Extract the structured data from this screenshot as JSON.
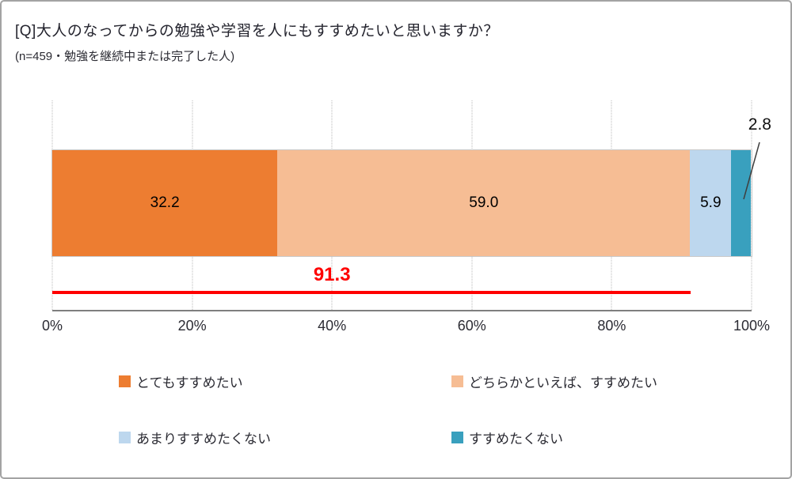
{
  "page": {
    "title": "[Q]大人のなってからの勉強や学習を人にもすすめたいと思いますか？",
    "subtitle": "(n=459・勉強を継続中または完了した人)"
  },
  "chart_data": {
    "type": "bar",
    "orientation": "horizontal",
    "stacked": true,
    "title": "[Q]大人のなってからの勉強や学習を人にもすすめたいと思いますか？",
    "subtitle": "(n=459・勉強を継続中または完了した人)",
    "categories": [
      "とてもすすめたい",
      "どちらかといえば、すすめたい",
      "あまりすすめたくない",
      "すすめたくない"
    ],
    "values": [
      32.2,
      59.0,
      5.9,
      2.8
    ],
    "xlim": [
      0,
      100
    ],
    "gridlines": "dotted-vertical",
    "legend_position": "bottom",
    "x_ticks": [
      {
        "label": "0%",
        "value": 0
      },
      {
        "label": "20%",
        "value": 20
      },
      {
        "label": "40%",
        "value": 40
      },
      {
        "label": "60%",
        "value": 60
      },
      {
        "label": "80%",
        "value": 80
      },
      {
        "label": "100%",
        "value": 100
      }
    ],
    "segments": [
      {
        "label": "とてもすすめたい",
        "value": 32.2,
        "display": "32.2",
        "color": "#ED7D31",
        "label_inside": true
      },
      {
        "label": "どちらかといえば、すすめたい",
        "value": 59.0,
        "display": "59.0",
        "color": "#F6BD94",
        "label_inside": true
      },
      {
        "label": "あまりすすめたくない",
        "value": 5.9,
        "display": "5.9",
        "color": "#BDD7EE",
        "label_inside": true
      },
      {
        "label": "すすめたくない",
        "value": 2.8,
        "display": "2.8",
        "color": "#39A0BE",
        "label_inside": false
      }
    ],
    "outside_label": {
      "text": "2.8",
      "segment": "すすめたくない"
    },
    "subtotal_annotation": {
      "text": "91.3",
      "value": 91.3,
      "color": "#FF0000",
      "includes": [
        "とてもすすめたい",
        "どちらかといえば、すすめたい"
      ]
    }
  },
  "legend": {
    "items": [
      {
        "label": "とてもすすめたい",
        "color": "#ED7D31"
      },
      {
        "label": "どちらかといえば、すすめたい",
        "color": "#F6BD94"
      },
      {
        "label": "あまりすすめたくない",
        "color": "#BDD7EE"
      },
      {
        "label": "すすめたくない",
        "color": "#39A0BE"
      }
    ]
  }
}
